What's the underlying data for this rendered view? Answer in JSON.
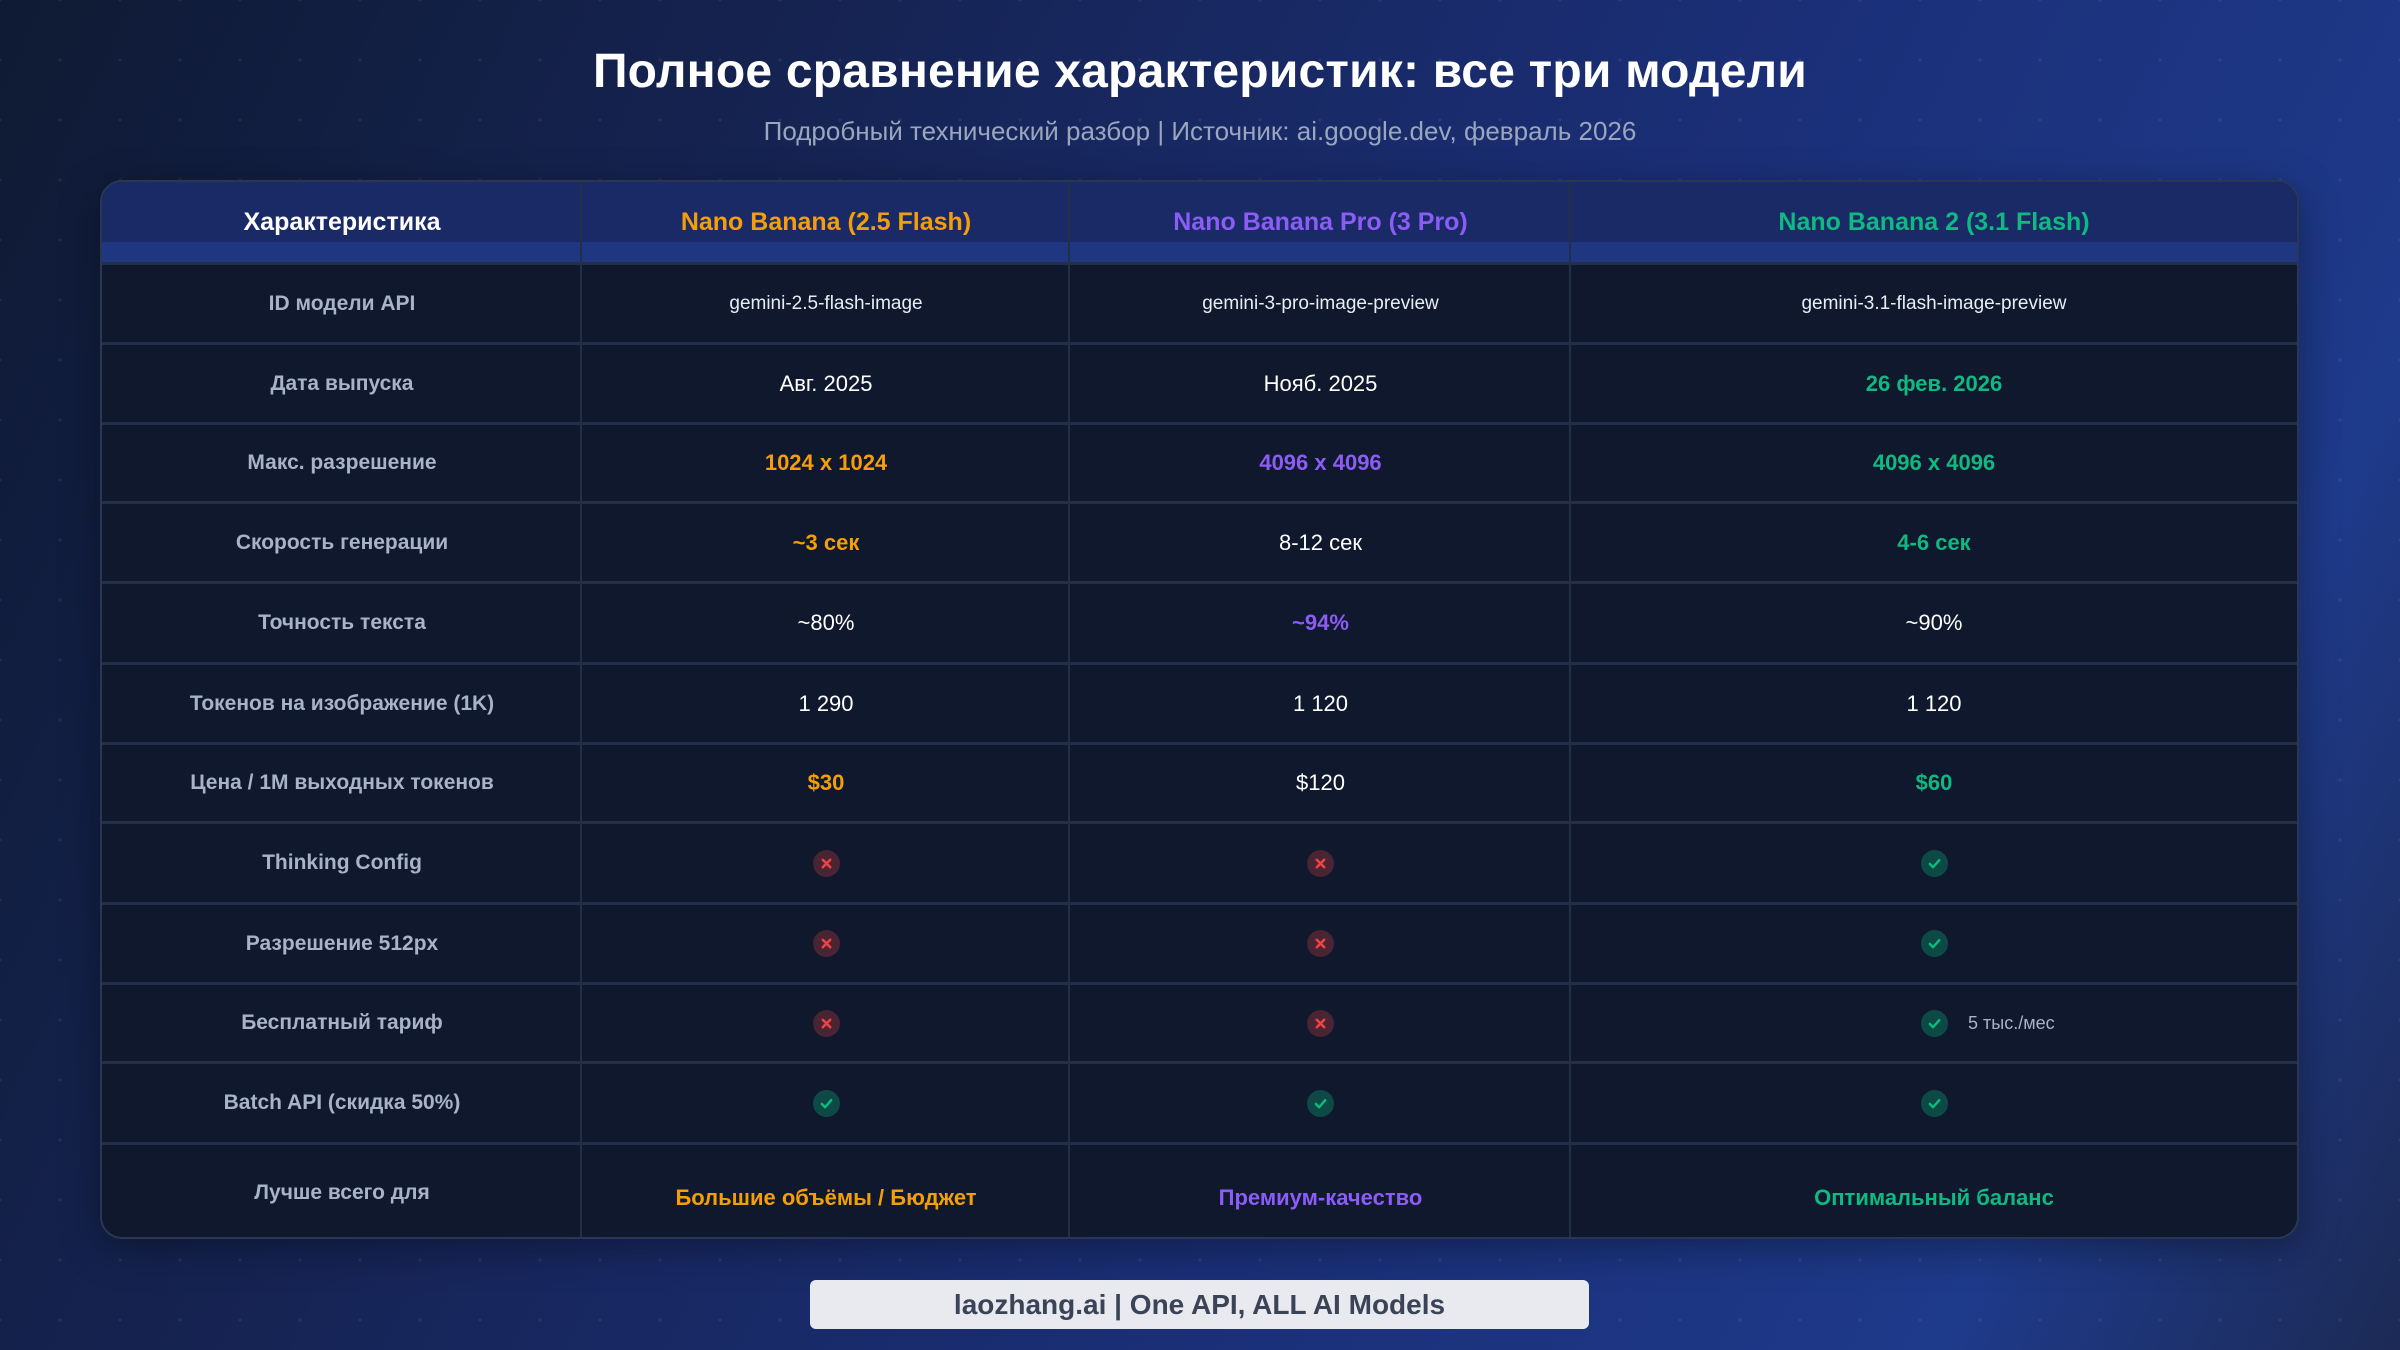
{
  "header": {
    "title": "Полное сравнение характеристик: все три модели",
    "subtitle": "Подробный технический разбор | Источник: ai.google.dev, февраль 2026"
  },
  "colors": {
    "orange": "#f59e0b",
    "purple": "#8b5cf6",
    "green": "#10b981",
    "label": "#a8b3c7",
    "yes_icon": "#10b981",
    "no_icon": "#ef4444"
  },
  "table": {
    "columns": [
      {
        "label": "Характеристика",
        "color": "#ffffff"
      },
      {
        "label": "Nano Banana (2.5 Flash)",
        "color": "#f59e0b"
      },
      {
        "label": "Nano Banana Pro (3 Pro)",
        "color": "#8b5cf6"
      },
      {
        "label": "Nano Banana 2 (3.1 Flash)",
        "color": "#10b981"
      }
    ],
    "rows": [
      {
        "label": "ID модели API",
        "cells": [
          {
            "type": "text",
            "value": "gemini-2.5-flash-image",
            "style": "plain-small"
          },
          {
            "type": "text",
            "value": "gemini-3-pro-image-preview",
            "style": "plain-small"
          },
          {
            "type": "text",
            "value": "gemini-3.1-flash-image-preview",
            "style": "plain-small"
          }
        ]
      },
      {
        "label": "Дата выпуска",
        "cells": [
          {
            "type": "text",
            "value": "Авг. 2025",
            "style": "plain"
          },
          {
            "type": "text",
            "value": "Нояб. 2025",
            "style": "plain"
          },
          {
            "type": "text",
            "value": "26 фев. 2026",
            "style": "green"
          }
        ]
      },
      {
        "label": "Макс. разрешение",
        "cells": [
          {
            "type": "text",
            "value": "1024 x 1024",
            "style": "orange"
          },
          {
            "type": "text",
            "value": "4096 x 4096",
            "style": "purple"
          },
          {
            "type": "text",
            "value": "4096 x 4096",
            "style": "green"
          }
        ]
      },
      {
        "label": "Скорость генерации",
        "cells": [
          {
            "type": "text",
            "value": "~3 сек",
            "style": "orange"
          },
          {
            "type": "text",
            "value": "8-12 сек",
            "style": "plain"
          },
          {
            "type": "text",
            "value": "4-6 сек",
            "style": "green"
          }
        ]
      },
      {
        "label": "Точность текста",
        "cells": [
          {
            "type": "text",
            "value": "~80%",
            "style": "plain"
          },
          {
            "type": "text",
            "value": "~94%",
            "style": "purple"
          },
          {
            "type": "text",
            "value": "~90%",
            "style": "plain"
          }
        ]
      },
      {
        "label": "Токенов на изображение (1K)",
        "cells": [
          {
            "type": "text",
            "value": "1 290",
            "style": "plain"
          },
          {
            "type": "text",
            "value": "1 120",
            "style": "plain"
          },
          {
            "type": "text",
            "value": "1 120",
            "style": "plain"
          }
        ]
      },
      {
        "label": "Цена / 1M выходных токенов",
        "cells": [
          {
            "type": "text",
            "value": "$30",
            "style": "orange"
          },
          {
            "type": "text",
            "value": "$120",
            "style": "plain"
          },
          {
            "type": "text",
            "value": "$60",
            "style": "green"
          }
        ]
      },
      {
        "label": "Thinking Config",
        "cells": [
          {
            "type": "icon",
            "value": "no"
          },
          {
            "type": "icon",
            "value": "no"
          },
          {
            "type": "icon",
            "value": "yes"
          }
        ]
      },
      {
        "label": "Разрешение 512px",
        "cells": [
          {
            "type": "icon",
            "value": "no"
          },
          {
            "type": "icon",
            "value": "no"
          },
          {
            "type": "icon",
            "value": "yes"
          }
        ]
      },
      {
        "label": "Бесплатный тариф",
        "cells": [
          {
            "type": "icon",
            "value": "no"
          },
          {
            "type": "icon",
            "value": "no"
          },
          {
            "type": "icon",
            "value": "yes",
            "note": "5 тыс./мес"
          }
        ]
      },
      {
        "label": "Batch API (скидка 50%)",
        "cells": [
          {
            "type": "icon",
            "value": "yes"
          },
          {
            "type": "icon",
            "value": "yes"
          },
          {
            "type": "icon",
            "value": "yes"
          }
        ]
      },
      {
        "label": "Лучше всего для",
        "cells": [
          {
            "type": "text",
            "value": "Большие объёмы / Бюджет",
            "style": "orange"
          },
          {
            "type": "text",
            "value": "Премиум-качество",
            "style": "purple"
          },
          {
            "type": "text",
            "value": "Оптимальный баланс",
            "style": "green"
          }
        ]
      }
    ]
  },
  "footer": {
    "label": "laozhang.ai | One API, ALL AI Models"
  }
}
